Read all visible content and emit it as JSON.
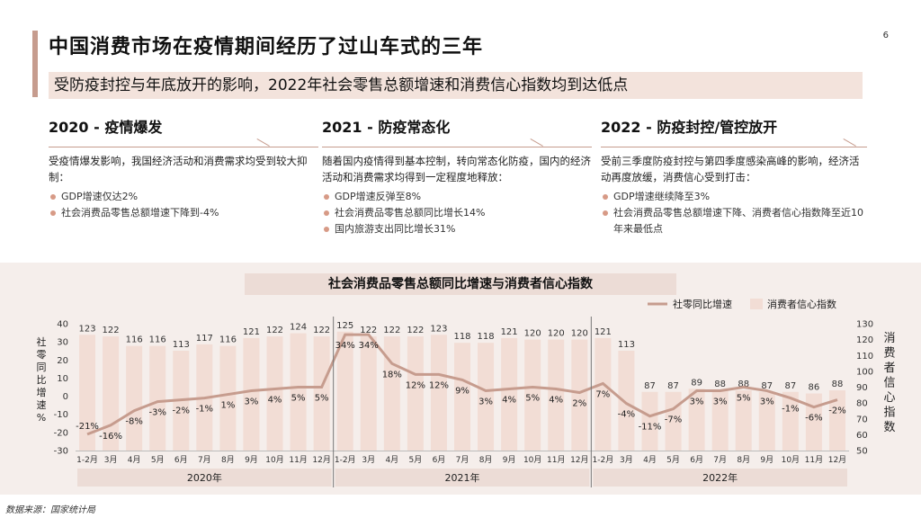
{
  "page_number": "6",
  "title": "中国消费市场在疫情期间经历了过山车式的三年",
  "subtitle": "受防疫封控与年底放开的影响，2022年社会零售总额增速和消费信心指数均到达低点",
  "columns": [
    {
      "heading": "2020 - 疫情爆发",
      "body": "受疫情爆发影响，我国经济活动和消费需求均受到较大抑制：",
      "bullets": [
        "GDP增速仅达2%",
        "社会消费品零售总额增速下降到-4%"
      ]
    },
    {
      "heading": "2021 - 防疫常态化",
      "body": "随着国内疫情得到基本控制，转向常态化防疫，国内的经济活动和消费需求均得到一定程度地释放：",
      "bullets": [
        "GDP增速反弹至8%",
        "社会消费品零售总额同比增长14%",
        "国内旅游支出同比增长31%"
      ]
    },
    {
      "heading": "2022 - 防疫封控/管控放开",
      "body": "受前三季度防疫封控与第四季度感染高峰的影响，经济活动再度放缓，消费信心受到打击：",
      "bullets": [
        "GDP增速继续降至3%",
        "社会消费品零售总额增速下降、消费者信心指数降至近10年来最低点"
      ]
    }
  ],
  "source": "数据来源：国家统计局",
  "colors": {
    "bar": "#f2ddd5",
    "line": "#c69c8e",
    "accent": "#c69c8e",
    "year_band": "#ecdcd6"
  },
  "chart_data": {
    "type": "bar+line",
    "title": "社会消费品零售总额同比增速与消费者信心指数",
    "legend": [
      "社零同比增速",
      "消费者信心指数"
    ],
    "legend_position": "top-right",
    "ylabel_left": "社零同比增速%",
    "ylabel_right": "消费者信心指数",
    "ylim_left": [
      -30,
      40
    ],
    "yticks_left": [
      "40",
      "30",
      "20",
      "10",
      "0",
      "-10",
      "-20",
      "-30"
    ],
    "ylim_right": [
      50,
      130
    ],
    "yticks_right": [
      "130",
      "120",
      "110",
      "100",
      "90",
      "80",
      "70",
      "60",
      "50"
    ],
    "categories": [
      "1-2月",
      "3月",
      "4月",
      "5月",
      "6月",
      "7月",
      "8月",
      "9月",
      "10月",
      "11月",
      "12月",
      "1-2月",
      "3月",
      "4月",
      "5月",
      "6月",
      "7月",
      "8月",
      "9月",
      "10月",
      "11月",
      "12月",
      "1-2月",
      "3月",
      "4月",
      "5月",
      "6月",
      "7月",
      "8月",
      "9月",
      "10月",
      "11月",
      "12月"
    ],
    "years": [
      "2020年",
      "2021年",
      "2022年"
    ],
    "confidence_index": [
      123,
      122,
      116,
      116,
      113,
      117,
      116,
      121,
      122,
      124,
      122,
      125,
      122,
      122,
      122,
      123,
      118,
      118,
      121,
      120,
      120,
      120,
      121,
      113,
      87,
      87,
      89,
      88,
      88,
      87,
      87,
      86,
      88
    ],
    "confidence_labels": [
      "123",
      "122",
      "116",
      "116",
      "113",
      "117",
      "116",
      "121",
      "122",
      "124",
      "122",
      "125",
      "122",
      "122",
      "122",
      "123",
      "118",
      "118",
      "121",
      "120",
      "120",
      "120",
      "121",
      "113",
      "87",
      "87",
      "89",
      "88",
      "88",
      "87",
      "87",
      "86",
      "88"
    ],
    "retail_growth": [
      -21,
      -16,
      -8,
      -3,
      -2,
      -1,
      1,
      3,
      4,
      5,
      5,
      34,
      34,
      18,
      12,
      12,
      9,
      3,
      4,
      5,
      4,
      2,
      7,
      -4,
      -11,
      -7,
      3,
      3,
      5,
      3,
      -1,
      -6,
      -2
    ],
    "retail_labels": [
      "-21%",
      "-16%",
      "-8%",
      "-3%",
      "-2%",
      "-1%",
      "1%",
      "3%",
      "4%",
      "5%",
      "5%",
      "34%",
      "34%",
      "18%",
      "12%",
      "12%",
      "9%",
      "3%",
      "4%",
      "5%",
      "4%",
      "2%",
      "7%",
      "-4%",
      "-11%",
      "-7%",
      "3%",
      "3%",
      "5%",
      "3%",
      "-1%",
      "-6%",
      "-2%"
    ]
  }
}
